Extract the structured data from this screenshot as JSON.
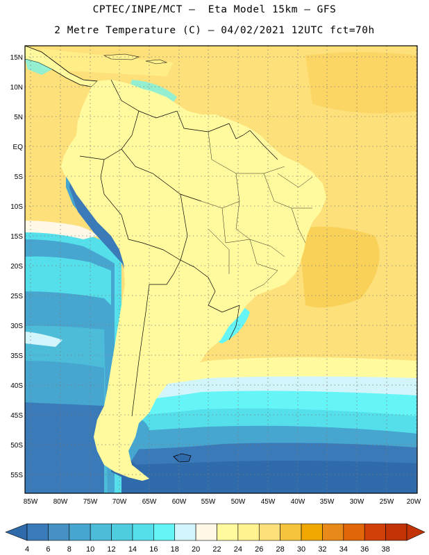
{
  "title": {
    "line1": "CPTEC/INPE/MCT –  Eta Model 15km – GFS",
    "line2": "2 Metre Temperature (C) – 04/02/2021 12UTC fct=70h"
  },
  "map": {
    "region": "South America",
    "lat_labels": [
      "15N",
      "10N",
      "5N",
      "EQ",
      "5S",
      "10S",
      "15S",
      "20S",
      "25S",
      "30S",
      "35S",
      "40S",
      "45S",
      "50S",
      "55S"
    ],
    "lon_labels": [
      "85W",
      "80W",
      "75W",
      "70W",
      "65W",
      "60W",
      "55W",
      "50W",
      "45W",
      "40W",
      "35W",
      "30W",
      "25W",
      "20W"
    ],
    "lon_range": [
      -86,
      -20
    ],
    "lat_range": [
      -58,
      17
    ]
  },
  "colorbar": {
    "labels": [
      "4",
      "6",
      "8",
      "10",
      "12",
      "14",
      "16",
      "18",
      "20",
      "22",
      "24",
      "26",
      "28",
      "30",
      "32",
      "34",
      "36",
      "38"
    ],
    "colors": [
      "#2f6aab",
      "#3a7ab9",
      "#4690c4",
      "#46a6d0",
      "#4cbcd9",
      "#50ccdf",
      "#54dfea",
      "#66f5f7",
      "#d2f5fb",
      "#fff8e6",
      "#fffa9e",
      "#fff28f",
      "#fde07a",
      "#f5c43c",
      "#f0a800",
      "#e88a1a",
      "#e06608",
      "#d04008",
      "#c23405"
    ],
    "units": "C"
  }
}
